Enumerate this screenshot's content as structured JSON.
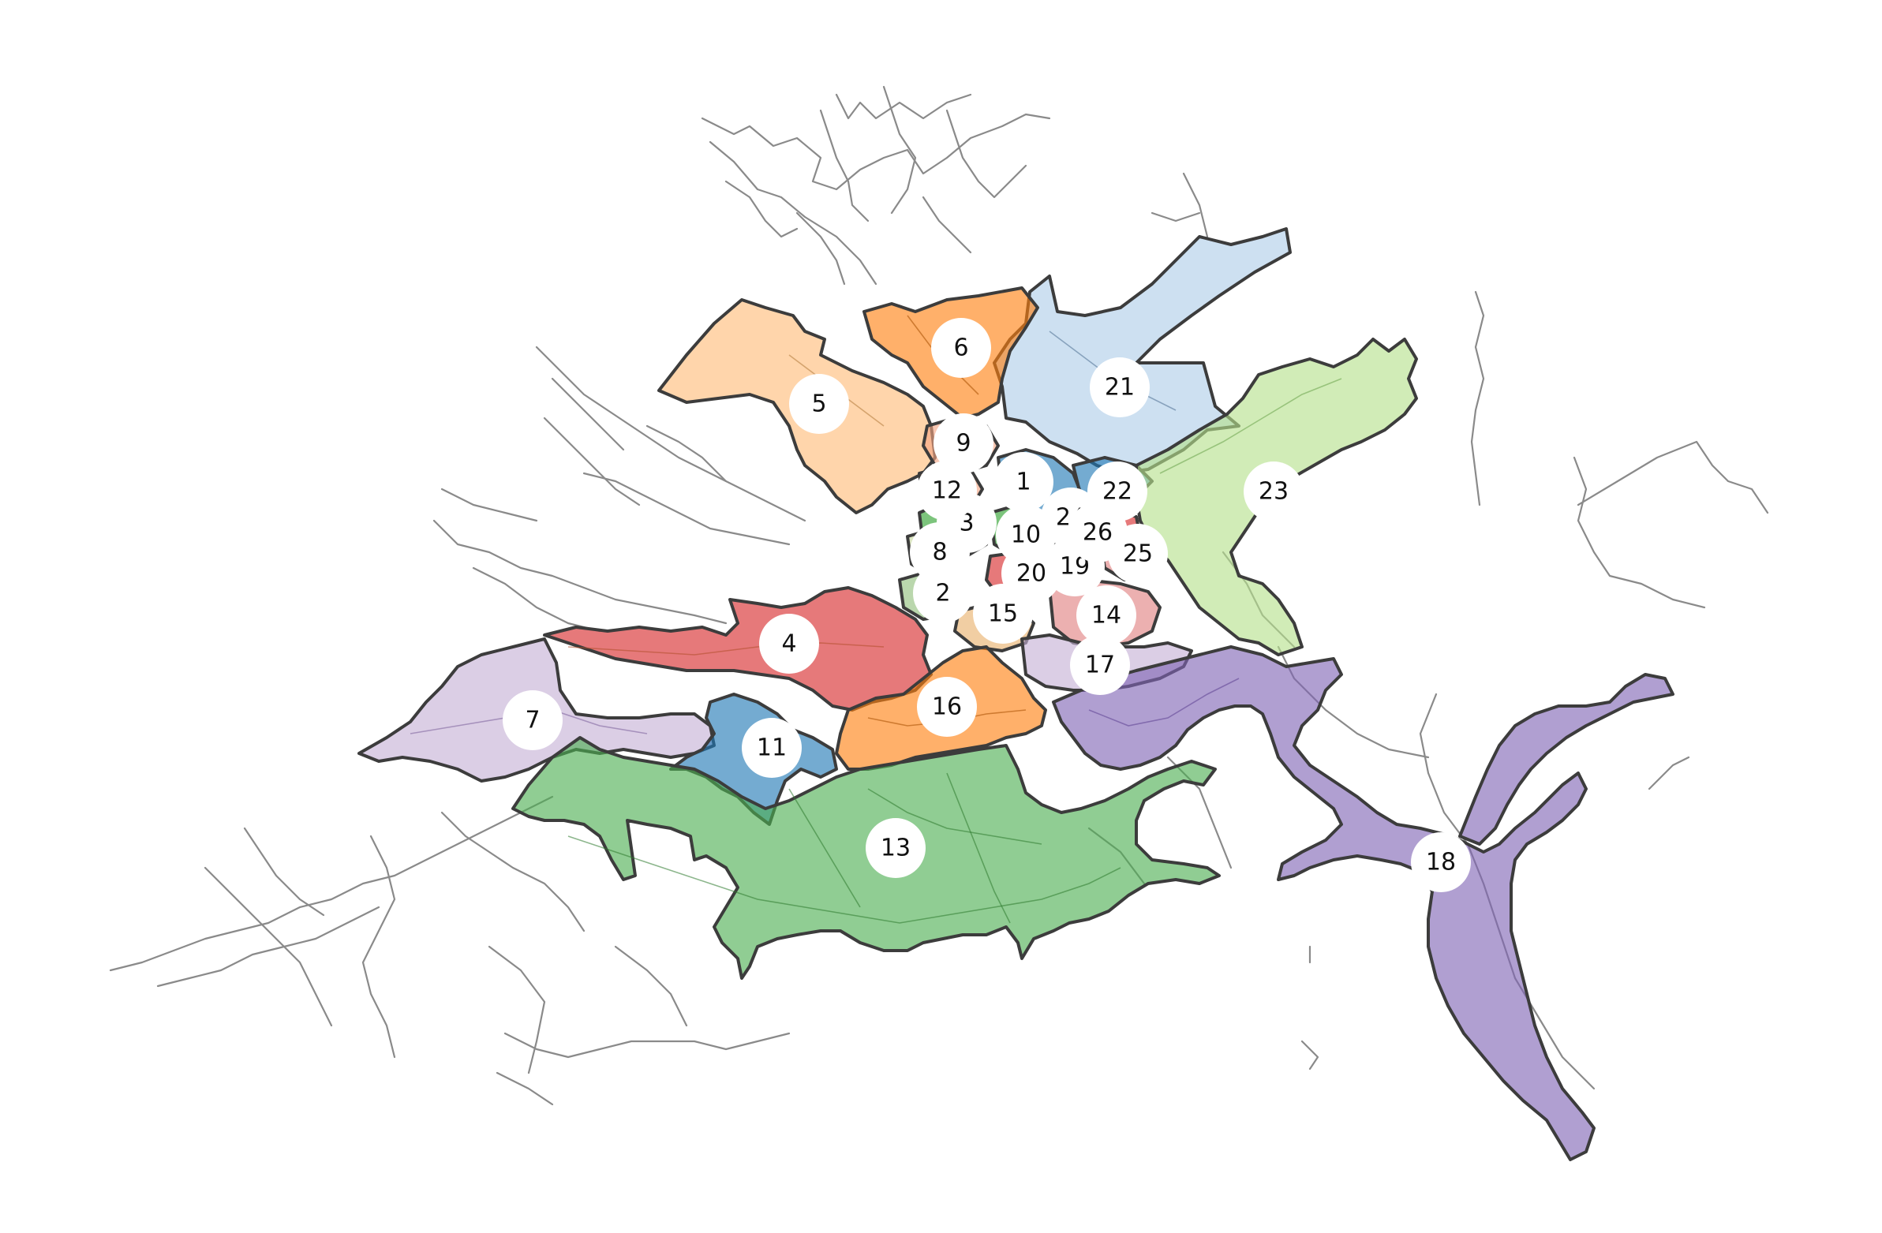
{
  "colors": {
    "background": "#ffffff",
    "road_network": "#8a8a8a",
    "region_outline": "#3c3c3c",
    "label_background": "#ffffff",
    "label_text": "#111111"
  },
  "regions": [
    {
      "id": "1",
      "label": "1",
      "color": "#1f77b4"
    },
    {
      "id": "2",
      "label": "2",
      "color": "#8fbf7a"
    },
    {
      "id": "3",
      "label": "3",
      "color": "#2ca02c"
    },
    {
      "id": "4",
      "label": "4",
      "color": "#d62728"
    },
    {
      "id": "5",
      "label": "5",
      "color": "#ffbb78"
    },
    {
      "id": "6",
      "label": "6",
      "color": "#ff7f0e"
    },
    {
      "id": "7",
      "label": "7",
      "color": "#c5b0d5"
    },
    {
      "id": "8",
      "label": "8",
      "color": "#c8d9a0"
    },
    {
      "id": "9",
      "label": "9",
      "color": "#f4a582"
    },
    {
      "id": "10",
      "label": "10",
      "color": "#2ca02c"
    },
    {
      "id": "11",
      "label": "11",
      "color": "#1f77b4"
    },
    {
      "id": "12",
      "label": "12",
      "color": "#f4a582"
    },
    {
      "id": "13",
      "label": "13",
      "color": "#4caf50"
    },
    {
      "id": "14",
      "label": "14",
      "color": "#e08080"
    },
    {
      "id": "15",
      "label": "15",
      "color": "#e8b06a"
    },
    {
      "id": "16",
      "label": "16",
      "color": "#ff7f0e"
    },
    {
      "id": "17",
      "label": "17",
      "color": "#c5b0d5"
    },
    {
      "id": "18",
      "label": "18",
      "color": "#8064b4"
    },
    {
      "id": "19",
      "label": "19",
      "color": "#1f77b4"
    },
    {
      "id": "20",
      "label": "20",
      "color": "#d62728"
    },
    {
      "id": "21",
      "label": "21",
      "color": "#aecde8"
    },
    {
      "id": "22",
      "label": "22",
      "color": "#1f77b4"
    },
    {
      "id": "23",
      "label": "23",
      "color": "#b5e08a"
    },
    {
      "id": "24",
      "label": "24",
      "color": "#1f77b4"
    },
    {
      "id": "25",
      "label": "25",
      "color": "#e08080"
    },
    {
      "id": "26",
      "label": "26",
      "color": "#d62728"
    }
  ]
}
